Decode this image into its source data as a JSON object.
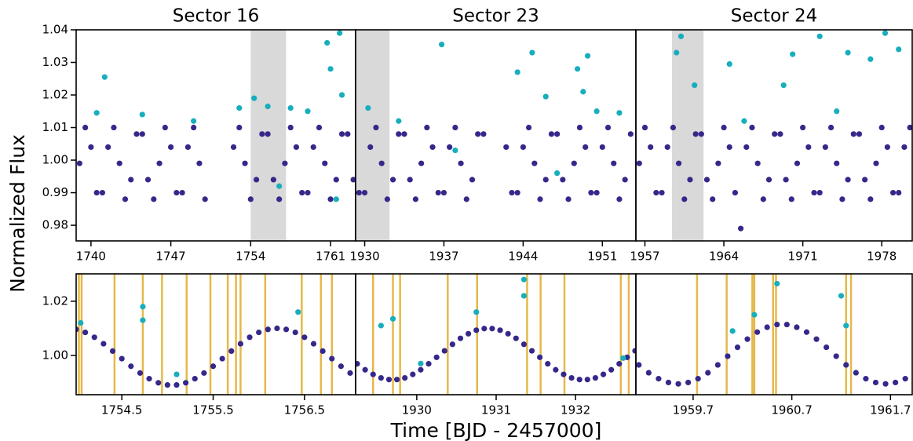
{
  "ylabel": "Normalized Flux",
  "xlabel": "Time [BJD - 2457000]",
  "chart_data": [
    {
      "type": "scatter",
      "title": "Sector 16",
      "xlim": [
        1738.7,
        1763.2
      ],
      "ylim": [
        0.9752,
        1.04
      ],
      "xticks": [
        1740,
        1747,
        1754,
        1761
      ],
      "yticks": [
        0.98,
        0.99,
        {
          "value": 1,
          "label": "1.00"
        },
        1.01,
        1.02,
        1.03,
        1.04
      ],
      "shaded": [
        [
          1754,
          1757.1
        ]
      ],
      "shade_color": "#d9d9d9",
      "series": [
        {
          "color": "#35288a",
          "x": [
            1739,
            1739.5,
            1740,
            1740.5,
            1741,
            1741.5,
            1742,
            1742.5,
            1743,
            1743.5,
            1744,
            1744.5,
            1745,
            1745.5,
            1746,
            1746.5,
            1747,
            1747.5,
            1748,
            1748.5,
            1749,
            1749.5,
            1750,
            1752.5,
            1753,
            1753.5,
            1754,
            1754.5,
            1755,
            1755.5,
            1756,
            1756.5,
            1757,
            1757.5,
            1758,
            1758.5,
            1759,
            1759.5,
            1760,
            1760.5,
            1761,
            1761.5,
            1762,
            1762.5,
            1763
          ],
          "values": [
            0.999,
            1.01,
            1.004,
            0.99,
            0.99,
            1.004,
            1.01,
            0.999,
            0.988,
            0.994,
            1.008,
            1.008,
            0.994,
            0.988,
            0.999,
            1.01,
            1.004,
            0.99,
            0.99,
            1.004,
            1.01,
            0.999,
            0.988,
            1.004,
            1.01,
            0.999,
            0.988,
            0.994,
            1.008,
            1.008,
            0.994,
            0.988,
            0.999,
            1.01,
            1.004,
            0.99,
            0.99,
            1.004,
            1.01,
            0.999,
            0.988,
            0.994,
            1.008,
            1.008,
            0.994
          ]
        },
        {
          "color": "#17aebd",
          "x": [
            1741.2,
            1740.5,
            1744.5,
            1749,
            1753,
            1754.3,
            1755.5,
            1757.5,
            1759,
            1760.7,
            1761,
            1761.8,
            1762,
            1761.5,
            1756.5
          ],
          "values": [
            1.0255,
            1.0145,
            1.014,
            1.012,
            1.016,
            1.019,
            1.0165,
            1.016,
            1.015,
            1.036,
            1.028,
            1.039,
            1.02,
            0.988,
            0.992
          ]
        }
      ]
    },
    {
      "type": "scatter",
      "title": "Sector 23",
      "xlim": [
        1929.2,
        1953.96
      ],
      "ylim": [
        0.9752,
        1.04
      ],
      "xticks": [
        1930,
        1937,
        1944,
        1951
      ],
      "shaded": [
        [
          1929.3,
          1932.2
        ]
      ],
      "shade_color": "#d9d9d9",
      "series": [
        {
          "color": "#35288a",
          "x": [
            1929.5,
            1930,
            1930.5,
            1931,
            1931.5,
            1932,
            1932.5,
            1933,
            1933.5,
            1934,
            1934.5,
            1935,
            1935.5,
            1936,
            1936.5,
            1937,
            1937.5,
            1938,
            1938.5,
            1939,
            1939.5,
            1940,
            1940.5,
            1942.5,
            1943,
            1943.5,
            1944,
            1944.5,
            1945,
            1945.5,
            1946,
            1946.5,
            1947,
            1947.5,
            1948,
            1948.5,
            1949,
            1949.5,
            1950,
            1950.5,
            1951,
            1951.5,
            1952,
            1952.5,
            1953,
            1953.5
          ],
          "values": [
            0.99,
            0.99,
            1.004,
            1.01,
            0.999,
            0.988,
            0.994,
            1.008,
            1.008,
            0.994,
            0.988,
            0.999,
            1.01,
            1.004,
            0.99,
            0.99,
            1.004,
            1.01,
            0.999,
            0.988,
            0.994,
            1.008,
            1.008,
            1.004,
            0.99,
            0.99,
            1.004,
            1.01,
            0.999,
            0.988,
            0.994,
            1.008,
            1.008,
            0.994,
            0.988,
            0.999,
            1.01,
            1.004,
            0.99,
            0.99,
            1.004,
            1.01,
            0.999,
            0.988,
            0.994,
            1.008
          ]
        },
        {
          "color": "#17aebd",
          "x": [
            1936.8,
            1930.3,
            1933,
            1943.5,
            1944.8,
            1946,
            1948.8,
            1949.7,
            1949.3,
            1950.5,
            1952.5,
            1938,
            1947
          ],
          "values": [
            1.0355,
            1.016,
            1.012,
            1.027,
            1.033,
            1.0195,
            1.028,
            1.032,
            1.021,
            1.015,
            1.0145,
            1.003,
            0.996
          ]
        }
      ]
    },
    {
      "type": "scatter",
      "title": "Sector 24",
      "xlim": [
        1956.2,
        1980.7
      ],
      "ylim": [
        0.9752,
        1.04
      ],
      "xticks": [
        1957,
        1964,
        1971,
        1978
      ],
      "shaded": [
        [
          1959.4,
          1962.2
        ]
      ],
      "shade_color": "#d9d9d9",
      "series": [
        {
          "color": "#35288a",
          "x": [
            1956.5,
            1957,
            1957.5,
            1958,
            1958.5,
            1959,
            1959.5,
            1960,
            1960.5,
            1961,
            1961.5,
            1962,
            1962.5,
            1963,
            1963.5,
            1964,
            1964.5,
            1965,
            1965.5,
            1966,
            1966.5,
            1967,
            1967.5,
            1968,
            1968.5,
            1969,
            1969.5,
            1970,
            1970.5,
            1971,
            1971.5,
            1972,
            1972.5,
            1973,
            1973.5,
            1974,
            1974.5,
            1975,
            1975.5,
            1976,
            1976.5,
            1977,
            1977.5,
            1978,
            1978.5,
            1979,
            1979.5,
            1980,
            1980.5
          ],
          "values": [
            0.999,
            1.01,
            1.004,
            0.99,
            0.99,
            1.004,
            1.01,
            0.999,
            0.988,
            0.994,
            1.008,
            1.008,
            0.994,
            0.988,
            0.999,
            1.01,
            1.004,
            0.99,
            0.979,
            1.004,
            1.01,
            0.999,
            0.988,
            0.994,
            1.008,
            1.008,
            0.994,
            0.988,
            0.999,
            1.01,
            1.004,
            0.99,
            0.99,
            1.004,
            1.01,
            0.999,
            0.988,
            0.994,
            1.008,
            1.008,
            0.994,
            0.988,
            0.999,
            1.01,
            1.004,
            0.99,
            0.99,
            1.004,
            1.01
          ]
        },
        {
          "color": "#17aebd",
          "x": [
            1959.8,
            1960.2,
            1961.4,
            1964.5,
            1969.3,
            1970.1,
            1972.5,
            1975,
            1977,
            1978.3,
            1979.5,
            1965.8,
            1974
          ],
          "values": [
            1.033,
            1.038,
            1.023,
            1.0295,
            1.023,
            1.0325,
            1.038,
            1.033,
            1.031,
            1.039,
            1.034,
            1.012,
            1.015
          ]
        }
      ]
    },
    {
      "type": "scatter",
      "xlim": [
        1754.0,
        1757.06
      ],
      "ylim": [
        0.9855,
        1.0301
      ],
      "xticks": [
        1754.5,
        1755.5,
        1756.5
      ],
      "yticks": [
        {
          "value": 1,
          "label": "1.00"
        },
        1.02
      ],
      "vlines": [
        1754.03,
        1754.06,
        1754.42,
        1754.73,
        1754.94,
        1755.21,
        1755.47,
        1755.66,
        1755.75,
        1755.8,
        1756.07,
        1756.47,
        1756.68,
        1756.8
      ],
      "vline_color": "#e6b84a",
      "series": [
        {
          "color": "#35288a",
          "x": [
            1754,
            1754.1,
            1754.2,
            1754.3,
            1754.4,
            1754.5,
            1754.6,
            1754.7,
            1754.8,
            1754.9,
            1755,
            1755.1,
            1755.2,
            1755.3,
            1755.4,
            1755.5,
            1755.6,
            1755.7,
            1755.8,
            1755.9,
            1756,
            1756.1,
            1756.2,
            1756.3,
            1756.4,
            1756.5,
            1756.6,
            1756.7,
            1756.8,
            1756.9,
            1757
          ],
          "values": [
            1.0096,
            1.0085,
            1.0067,
            1.0043,
            1.0016,
            0.9988,
            0.996,
            0.9935,
            0.9914,
            0.9899,
            0.9891,
            0.9891,
            0.9899,
            0.9914,
            0.9935,
            0.996,
            0.9988,
            1.0016,
            1.0043,
            1.0067,
            1.0085,
            1.0096,
            1.01,
            1.0096,
            1.0085,
            1.0067,
            1.0043,
            1.0016,
            0.9988,
            0.996,
            0.9935
          ]
        },
        {
          "color": "#17aebd",
          "x": [
            1754.73,
            1754.73,
            1756.43,
            1754.05,
            1755.1
          ],
          "values": [
            1.018,
            1.013,
            1.016,
            1.012,
            0.993
          ]
        }
      ]
    },
    {
      "type": "scatter",
      "xlim": [
        1929.23,
        1932.76
      ],
      "ylim": [
        0.9855,
        1.0301
      ],
      "xticks": [
        1930,
        1931,
        1932
      ],
      "vlines": [
        1929.45,
        1929.7,
        1929.79,
        1930.39,
        1930.76,
        1931.39,
        1931.56,
        1931.86,
        1932.57,
        1932.67
      ],
      "vline_color": "#e6b84a",
      "series": [
        {
          "color": "#35288a",
          "x": [
            1929.25,
            1929.35,
            1929.45,
            1929.55,
            1929.65,
            1929.75,
            1929.85,
            1929.95,
            1930.05,
            1930.15,
            1930.25,
            1930.35,
            1930.45,
            1930.55,
            1930.65,
            1930.75,
            1930.85,
            1930.95,
            1931.05,
            1931.15,
            1931.25,
            1931.35,
            1931.45,
            1931.55,
            1931.65,
            1931.75,
            1931.85,
            1931.95,
            1932.05,
            1932.15,
            1932.25,
            1932.35,
            1932.45,
            1932.55,
            1932.65,
            1932.75
          ],
          "values": [
            0.9969,
            0.9947,
            0.993,
            0.9917,
            0.9911,
            0.9911,
            0.9917,
            0.993,
            0.9947,
            0.9969,
            0.9993,
            1.0017,
            1.0041,
            1.0063,
            1.008,
            1.0093,
            1.0099,
            1.0099,
            1.0093,
            1.008,
            1.0063,
            1.0041,
            1.0017,
            0.9993,
            0.9969,
            0.9947,
            0.993,
            0.9917,
            0.9911,
            0.9911,
            0.9917,
            0.993,
            0.9947,
            0.9969,
            0.9993,
            1.0017
          ]
        },
        {
          "color": "#17aebd",
          "x": [
            1929.55,
            1929.7,
            1930.75,
            1931.35,
            1931.35,
            1932.6,
            1930.05
          ],
          "values": [
            1.011,
            1.0135,
            1.016,
            1.028,
            1.022,
            0.999,
            0.997
          ]
        }
      ]
    },
    {
      "type": "scatter",
      "xlim": [
        1959.12,
        1961.92
      ],
      "ylim": [
        0.9855,
        1.0301
      ],
      "xticks": [
        1959.7,
        1960.7,
        1961.7
      ],
      "vlines": [
        1959.74,
        1960.04,
        1960.3,
        1960.32,
        1960.51,
        1960.54,
        1961.25,
        1961.3
      ],
      "vline_color": "#e6b84a",
      "series": [
        {
          "color": "#35288a",
          "x": [
            1959.15,
            1959.25,
            1959.35,
            1959.45,
            1959.55,
            1959.65,
            1959.75,
            1959.85,
            1959.95,
            1960.05,
            1960.15,
            1960.25,
            1960.35,
            1960.45,
            1960.55,
            1960.65,
            1960.75,
            1960.85,
            1960.95,
            1961.05,
            1961.15,
            1961.25,
            1961.35,
            1961.45,
            1961.55,
            1961.65,
            1961.75,
            1961.85
          ],
          "values": [
            0.9965,
            0.9936,
            0.9914,
            0.99,
            0.9895,
            0.99,
            0.9914,
            0.9936,
            0.9965,
            0.9997,
            1.003,
            1.006,
            1.0086,
            1.0104,
            1.0114,
            1.0114,
            1.0104,
            1.0086,
            1.006,
            1.003,
            0.9997,
            0.9965,
            0.9936,
            0.9914,
            0.99,
            0.9895,
            0.99,
            0.9914
          ]
        },
        {
          "color": "#17aebd",
          "x": [
            1960.32,
            1960.55,
            1961.2,
            1960.1,
            1961.25
          ],
          "values": [
            1.015,
            1.0265,
            1.022,
            1.009,
            1.011
          ]
        }
      ]
    }
  ]
}
